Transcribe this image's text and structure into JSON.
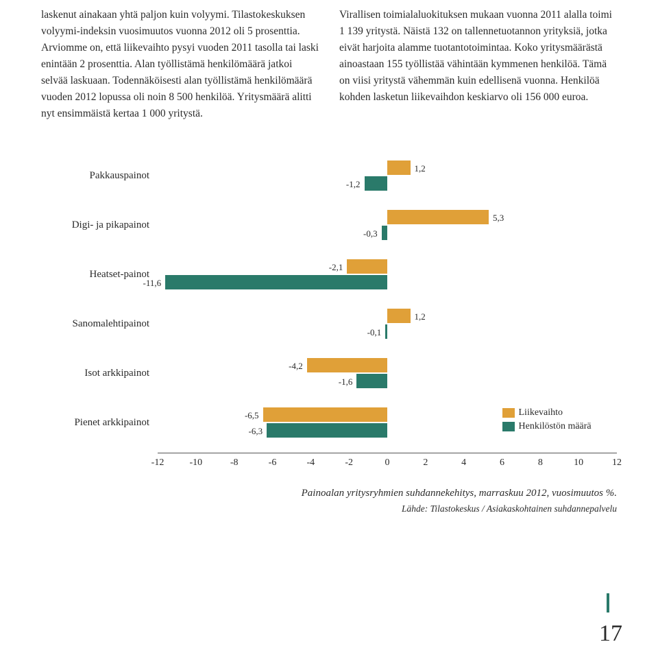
{
  "text": {
    "col1": "laskenut ainakaan yhtä paljon kuin volyymi. Tilastokeskuksen volyymi-indeksin vuosimuutos vuonna 2012 oli 5 prosenttia. Arviomme on, että liikevaihto pysyi vuoden 2011 tasolla tai laski enintään 2 prosenttia. Alan työllistämä henkilömäärä jatkoi selvää laskuaan. Todennäköisesti alan työllistämä henkilömäärä vuoden 2012 lopussa oli noin 8 500 henkilöä. Yritysmäärä alitti nyt ensimmäistä kertaa 1 000 yritystä.",
    "col2": "Virallisen toimialaluokituksen mukaan vuonna 2011 alalla toimi 1 139 yritystä. Näistä 132 on tallennetuotannon yrityksiä, jotka eivät harjoita alamme tuotantotoimintaa. Koko yritysmäärästä ainoastaan 155 työllistää vähintään kymmenen henkilöä. Tämä on viisi yritystä vähemmän kuin edellisenä vuonna. Henkilöä kohden lasketun liikevaihdon keskiarvo oli 156 000 euroa."
  },
  "chart": {
    "xmin": -12,
    "xmax": 12,
    "ticks": [
      -12,
      -10,
      -8,
      -6,
      -4,
      -2,
      0,
      2,
      4,
      6,
      8,
      10,
      12
    ],
    "color_revenue": "#e0a038",
    "color_staff": "#2a7a6a",
    "categories": [
      {
        "label": "Pakkauspainot",
        "revenue": 1.2,
        "staff": -1.2,
        "rev_lbl": "1,2",
        "stf_lbl": "-1,2"
      },
      {
        "label": "Digi- ja pikapainot",
        "revenue": 5.3,
        "staff": -0.3,
        "rev_lbl": "5,3",
        "stf_lbl": "-0,3"
      },
      {
        "label": "Heatset-painot",
        "revenue": -2.1,
        "staff": -11.6,
        "rev_lbl": "-2,1",
        "stf_lbl": "-11,6"
      },
      {
        "label": "Sanomalehtipainot",
        "revenue": 1.2,
        "staff": -0.1,
        "rev_lbl": "1,2",
        "stf_lbl": "-0,1"
      },
      {
        "label": "Isot arkkipainot",
        "revenue": -4.2,
        "staff": -1.6,
        "rev_lbl": "-4,2",
        "stf_lbl": "-1,6"
      },
      {
        "label": "Pienet arkkipainot",
        "revenue": -6.5,
        "staff": -6.3,
        "rev_lbl": "-6,5",
        "stf_lbl": "-6,3"
      }
    ],
    "legend": {
      "revenue": "Liikevaihto",
      "staff": "Henkilöstön määrä"
    },
    "caption_main": "Painoalan yritysryhmien suhdannekehitys, marraskuu 2012, vuosimuutos %.",
    "caption_source": "Lähde: Tilastokeskus / Asiakaskohtainen suhdannepalvelu"
  },
  "page_number": "17"
}
